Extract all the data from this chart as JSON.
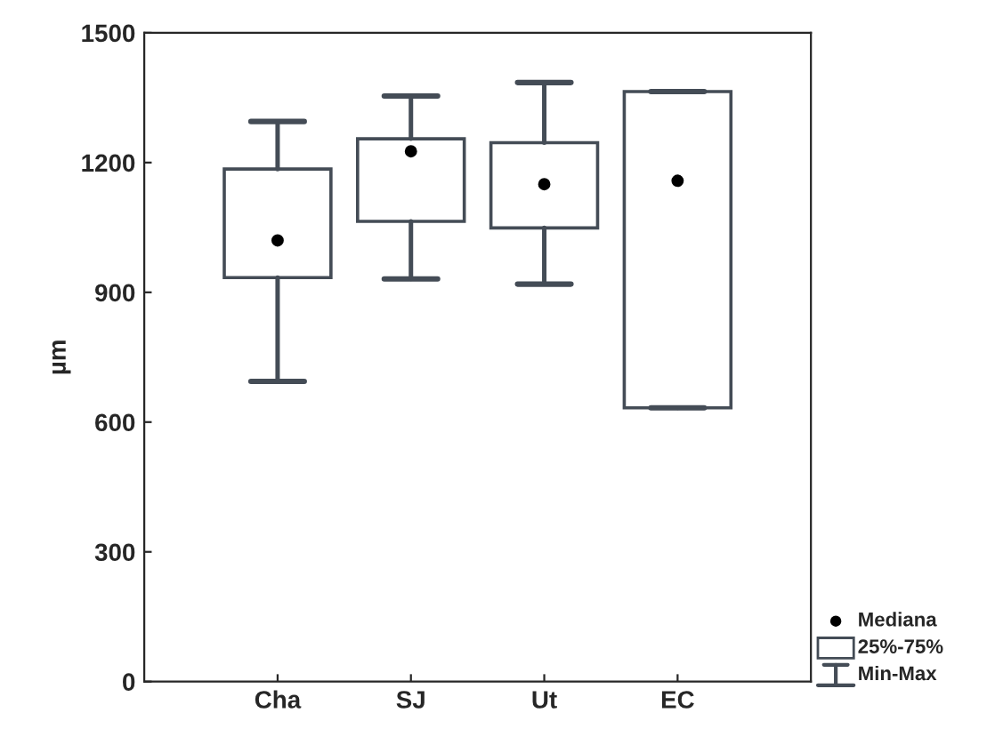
{
  "chart_data": {
    "type": "box",
    "ylabel": "µm",
    "categories": [
      "Cha",
      "SJ",
      "Ut",
      "EC"
    ],
    "boxes": [
      {
        "low": 694,
        "q1": 934,
        "median": 1020,
        "q3": 1185,
        "high": 1295
      },
      {
        "low": 931,
        "q1": 1064,
        "median": 1226,
        "q3": 1255,
        "high": 1354
      },
      {
        "low": 919,
        "q1": 1049,
        "median": 1150,
        "q3": 1246,
        "high": 1385
      },
      {
        "low": 633,
        "q1": 633,
        "median": 1158,
        "q3": 1364,
        "high": 1364
      }
    ],
    "color": "#444c56",
    "ylim": [
      0,
      1500
    ],
    "yticks": [
      0,
      300,
      600,
      900,
      1200,
      1500
    ],
    "annotations": [
      "Mediana",
      "25%-75%",
      "Min-Max"
    ]
  }
}
